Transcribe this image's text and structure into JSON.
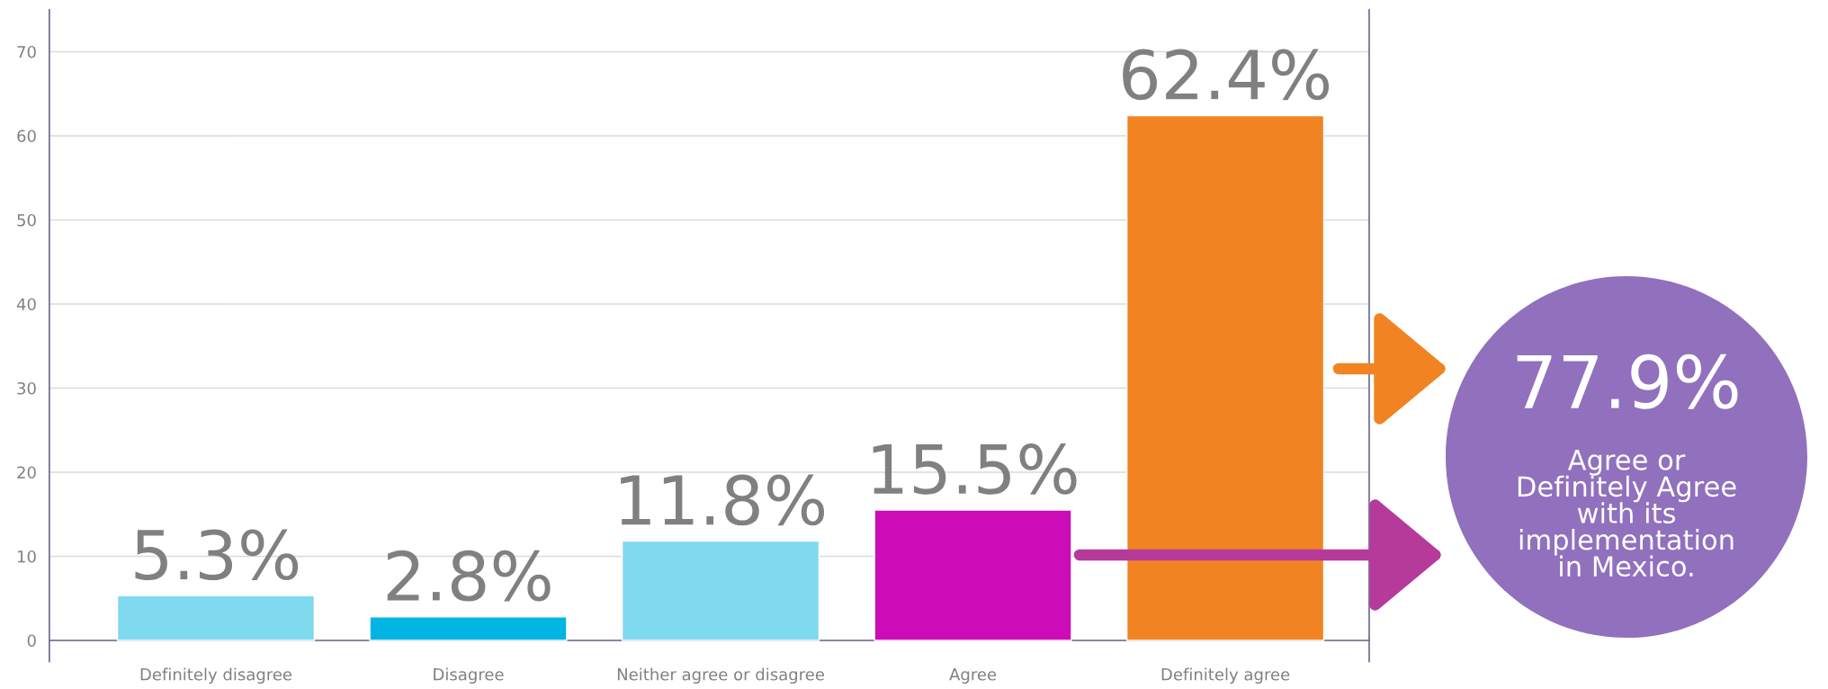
{
  "chart_data": {
    "type": "bar",
    "categories": [
      "Definitely disagree",
      "Disagree",
      "Neither agree or disagree",
      "Agree",
      "Definitely agree"
    ],
    "values": [
      5.3,
      2.8,
      11.8,
      15.5,
      62.4
    ],
    "colors": [
      "#7fd9ef",
      "#00b5e2",
      "#7fd9ef",
      "#cc0cb6",
      "#f28322"
    ],
    "value_labels": [
      "5.3%",
      "2.8%",
      "11.8%",
      "15.5%",
      "62.4%"
    ],
    "ylim": [
      -2.5,
      75
    ],
    "yticks": [
      0,
      10,
      20,
      30,
      40,
      50,
      60,
      70
    ],
    "grid": "y",
    "legend": false,
    "annotations": [
      "77.9%",
      "Agree or\nDefinitely Agree\nwith its\nimplementation\nin Mexico."
    ]
  }
}
